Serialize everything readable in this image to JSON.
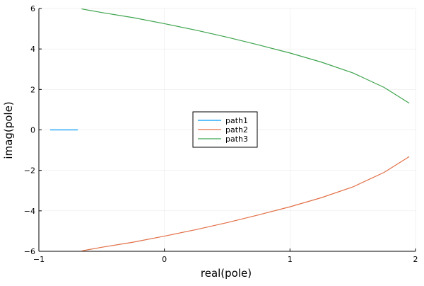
{
  "chart_data": {
    "type": "line",
    "title": "",
    "xlabel": "real(pole)",
    "ylabel": "imag(pole)",
    "xlim": [
      -1,
      2
    ],
    "ylim": [
      -6,
      6
    ],
    "x_ticks": [
      -1,
      0,
      1,
      2
    ],
    "y_ticks": [
      -6,
      -4,
      -2,
      0,
      2,
      4,
      6
    ],
    "x_tick_labels": [
      "−1",
      "0",
      "1",
      "2"
    ],
    "y_tick_labels": [
      "−6",
      "−4",
      "−2",
      "0",
      "2",
      "4",
      "6"
    ],
    "grid": true,
    "legend_position": "center",
    "series": [
      {
        "name": "path1",
        "color": "#009AFA",
        "points": [
          [
            -0.91,
            0
          ],
          [
            -0.69,
            0
          ]
        ]
      },
      {
        "name": "path2",
        "color": "#E26F46",
        "points": [
          [
            -0.66,
            -5.98
          ],
          [
            -0.5,
            -5.8
          ],
          [
            -0.25,
            -5.55
          ],
          [
            0,
            -5.25
          ],
          [
            0.25,
            -4.93
          ],
          [
            0.5,
            -4.58
          ],
          [
            0.75,
            -4.2
          ],
          [
            1.0,
            -3.8
          ],
          [
            1.25,
            -3.35
          ],
          [
            1.5,
            -2.82
          ],
          [
            1.75,
            -2.1
          ],
          [
            1.95,
            -1.32
          ]
        ]
      },
      {
        "name": "path3",
        "color": "#3EA44E",
        "points": [
          [
            -0.66,
            5.98
          ],
          [
            -0.5,
            5.8
          ],
          [
            -0.25,
            5.55
          ],
          [
            0,
            5.25
          ],
          [
            0.25,
            4.93
          ],
          [
            0.5,
            4.58
          ],
          [
            0.75,
            4.2
          ],
          [
            1.0,
            3.8
          ],
          [
            1.25,
            3.35
          ],
          [
            1.5,
            2.82
          ],
          [
            1.75,
            2.1
          ],
          [
            1.95,
            1.32
          ]
        ]
      }
    ]
  }
}
